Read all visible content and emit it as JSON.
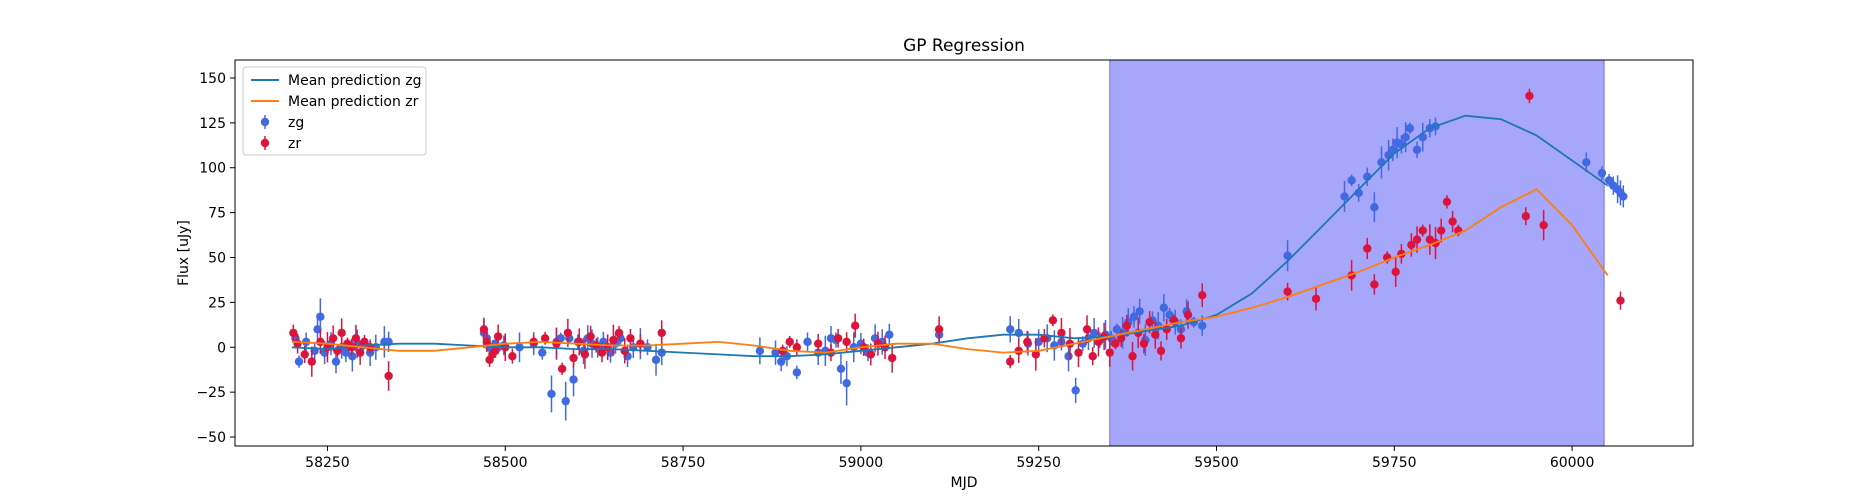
{
  "chart_data": {
    "type": "scatter",
    "title": "GP Regression",
    "xlabel": "MJD",
    "ylabel": "Flux [uJy]",
    "xlim": [
      58120,
      60170
    ],
    "ylim": [
      -55,
      160
    ],
    "xticks": [
      58250,
      58500,
      58750,
      59000,
      59250,
      59500,
      59750,
      60000
    ],
    "yticks": [
      -50,
      -25,
      0,
      25,
      50,
      75,
      100,
      125,
      150
    ],
    "grid": false,
    "legend_position": "upper-left",
    "shaded_region": {
      "x0": 59350,
      "x1": 60045,
      "color": "#a6a6fb"
    },
    "series": [
      {
        "name": "Mean prediction zg",
        "kind": "line",
        "color": "#1f77b4",
        "x": [
          58200,
          58250,
          58300,
          58350,
          58400,
          58450,
          58500,
          58550,
          58600,
          58650,
          58700,
          58750,
          58800,
          58850,
          58900,
          58950,
          59000,
          59050,
          59100,
          59150,
          59200,
          59250,
          59300,
          59350,
          59400,
          59450,
          59500,
          59550,
          59600,
          59650,
          59700,
          59750,
          59800,
          59850,
          59900,
          59950,
          60000,
          60050
        ],
        "y": [
          0,
          -1,
          1,
          2,
          2,
          1,
          0,
          0,
          -1,
          -1,
          -2,
          -3,
          -4,
          -5,
          -5,
          -4,
          -2,
          0,
          2,
          5,
          7,
          7,
          5,
          6,
          9,
          12,
          18,
          30,
          48,
          68,
          88,
          108,
          122,
          129,
          127,
          118,
          104,
          90
        ]
      },
      {
        "name": "Mean prediction zr",
        "kind": "line",
        "color": "#ff7f0e",
        "x": [
          58200,
          58250,
          58300,
          58350,
          58400,
          58450,
          58500,
          58550,
          58600,
          58650,
          58700,
          58750,
          58800,
          58850,
          58900,
          58950,
          59000,
          59050,
          59100,
          59150,
          59200,
          59250,
          59300,
          59350,
          59400,
          59450,
          59500,
          59550,
          59600,
          59650,
          59700,
          59750,
          59800,
          59850,
          59900,
          59950,
          60000,
          60050
        ],
        "y": [
          3,
          2,
          0,
          -2,
          -2,
          0,
          2,
          3,
          2,
          1,
          1,
          2,
          3,
          1,
          -2,
          -3,
          0,
          2,
          2,
          -1,
          -3,
          -2,
          2,
          6,
          10,
          14,
          17,
          22,
          28,
          35,
          42,
          50,
          57,
          65,
          78,
          88,
          68,
          40
        ]
      },
      {
        "name": "zg",
        "kind": "scatter",
        "color": "#4169e1",
        "x": [
          58205,
          58210,
          58220,
          58232,
          58236,
          58240,
          58246,
          58255,
          58262,
          58270,
          58276,
          58285,
          58292,
          58300,
          58310,
          58318,
          58330,
          58336,
          58470,
          58474,
          58478,
          58482,
          58486,
          58490,
          58498,
          58520,
          58540,
          58552,
          58565,
          58572,
          58578,
          58585,
          58590,
          58596,
          58602,
          58610,
          58616,
          58622,
          58630,
          58638,
          58648,
          58655,
          58662,
          58672,
          58680,
          58690,
          58700,
          58712,
          58720,
          58858,
          58880,
          58888,
          58896,
          58910,
          58925,
          58940,
          58950,
          58958,
          58965,
          58972,
          58980,
          58990,
          59000,
          59010,
          59020,
          59030,
          59040,
          59110,
          59210,
          59222,
          59235,
          59250,
          59262,
          59272,
          59282,
          59292,
          59302,
          59312,
          59320,
          59328,
          59336,
          59344,
          59352,
          59360,
          59368,
          59376,
          59384,
          59392,
          59400,
          59410,
          59418,
          59426,
          59434,
          59442,
          59450,
          59458,
          59468,
          59480,
          59600,
          59680,
          59690,
          59700,
          59712,
          59722,
          59732,
          59742,
          59748,
          59754,
          59760,
          59766,
          59772,
          59782,
          59790,
          59800,
          59808,
          60020,
          60042,
          60052,
          60058,
          60064,
          60068,
          60072
        ],
        "y": [
          5,
          -8,
          3,
          -2,
          10,
          17,
          -3,
          2,
          -8,
          0,
          -3,
          -5,
          2,
          1,
          -3,
          0,
          3,
          3,
          8,
          5,
          0,
          -2,
          2,
          0,
          1,
          0,
          2,
          -3,
          -26,
          3,
          5,
          -30,
          5,
          -18,
          3,
          -2,
          5,
          2,
          0,
          3,
          -3,
          2,
          5,
          -5,
          0,
          2,
          0,
          -7,
          -3,
          -2,
          -3,
          -8,
          -5,
          -14,
          3,
          -3,
          -2,
          5,
          4,
          -12,
          -20,
          0,
          2,
          -3,
          5,
          3,
          7,
          7,
          10,
          8,
          2,
          3,
          5,
          1,
          3,
          -5,
          -24,
          2,
          5,
          8,
          4,
          7,
          5,
          10,
          8,
          14,
          17,
          20,
          4,
          15,
          12,
          22,
          18,
          14,
          10,
          20,
          14,
          12,
          51,
          84,
          93,
          86,
          95,
          78,
          103,
          107,
          110,
          114,
          113,
          117,
          122,
          110,
          117,
          122,
          123,
          103,
          97,
          93,
          90,
          88,
          86,
          84
        ]
      },
      {
        "name": "zr",
        "kind": "scatter",
        "color": "#dc143c",
        "x": [
          58202,
          58208,
          58218,
          58228,
          58240,
          58250,
          58258,
          58264,
          58270,
          58278,
          58284,
          58290,
          58296,
          58302,
          58310,
          58336,
          58470,
          58474,
          58478,
          58482,
          58486,
          58490,
          58500,
          58510,
          58540,
          58556,
          58572,
          58580,
          58588,
          58596,
          58604,
          58612,
          58620,
          58628,
          58636,
          58644,
          58652,
          58660,
          58668,
          58676,
          58690,
          58720,
          58890,
          58900,
          58910,
          58940,
          58958,
          58968,
          58980,
          58992,
          59004,
          59014,
          59024,
          59034,
          59044,
          59110,
          59210,
          59222,
          59234,
          59246,
          59258,
          59270,
          59282,
          59294,
          59306,
          59318,
          59326,
          59334,
          59342,
          59350,
          59358,
          59366,
          59374,
          59382,
          59390,
          59398,
          59406,
          59414,
          59422,
          59430,
          59440,
          59450,
          59460,
          59480,
          59600,
          59640,
          59690,
          59712,
          59722,
          59740,
          59752,
          59760,
          59774,
          59782,
          59790,
          59800,
          59808,
          59816,
          59824,
          59832,
          59840,
          59935,
          59940,
          59960,
          60068
        ],
        "y": [
          8,
          2,
          -4,
          -8,
          3,
          0,
          5,
          -2,
          8,
          2,
          0,
          5,
          -3,
          3,
          0,
          -16,
          10,
          3,
          -7,
          -4,
          -2,
          6,
          0,
          -5,
          3,
          5,
          2,
          -12,
          8,
          -6,
          3,
          -4,
          6,
          1,
          -3,
          0,
          4,
          8,
          -2,
          5,
          2,
          8,
          -2,
          3,
          0,
          2,
          -3,
          5,
          3,
          12,
          0,
          -4,
          2,
          0,
          -6,
          10,
          -8,
          -2,
          3,
          -4,
          5,
          15,
          8,
          2,
          -3,
          10,
          -5,
          3,
          6,
          -3,
          2,
          5,
          12,
          -5,
          8,
          2,
          14,
          7,
          -2,
          10,
          15,
          5,
          18,
          29,
          31,
          27,
          40,
          55,
          35,
          50,
          42,
          52,
          57,
          60,
          65,
          60,
          58,
          65,
          81,
          70,
          65,
          73,
          140,
          68,
          26
        ]
      }
    ]
  }
}
